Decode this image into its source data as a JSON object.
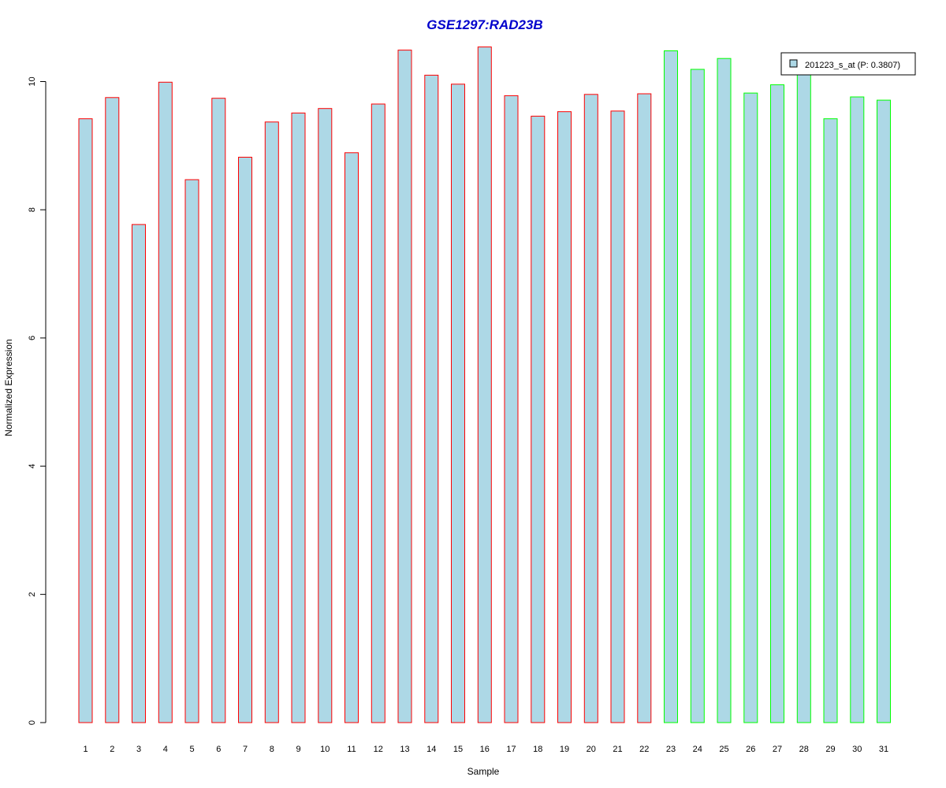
{
  "chart_data": {
    "type": "bar",
    "title": "GSE1297:RAD23B",
    "xlabel": "Sample",
    "ylabel": "Normalized Expression",
    "ylim": [
      0,
      10.5
    ],
    "yticks": [
      "0",
      "2",
      "4",
      "6",
      "8",
      "10"
    ],
    "categories": [
      "1",
      "2",
      "3",
      "4",
      "5",
      "6",
      "7",
      "8",
      "9",
      "10",
      "11",
      "12",
      "13",
      "14",
      "15",
      "16",
      "17",
      "18",
      "19",
      "20",
      "21",
      "22",
      "23",
      "24",
      "25",
      "26",
      "27",
      "28",
      "29",
      "30",
      "31"
    ],
    "values": [
      9.42,
      9.75,
      7.77,
      9.99,
      8.47,
      9.74,
      8.82,
      9.37,
      9.51,
      9.58,
      8.89,
      9.65,
      10.49,
      10.1,
      9.96,
      10.54,
      9.78,
      9.46,
      9.53,
      9.8,
      9.54,
      9.81,
      10.48,
      10.19,
      10.36,
      9.82,
      9.95,
      10.13,
      9.42,
      9.76,
      9.71
    ],
    "group_size_first": 22,
    "legend": {
      "label": "201223_s_at (P: 0.3807)",
      "placement": "top-right"
    },
    "colors": {
      "fill": "#ADD8E6",
      "border_group1": "#FF0000",
      "border_group2": "#00FF00",
      "title": "#0000CC"
    },
    "grid": false
  }
}
